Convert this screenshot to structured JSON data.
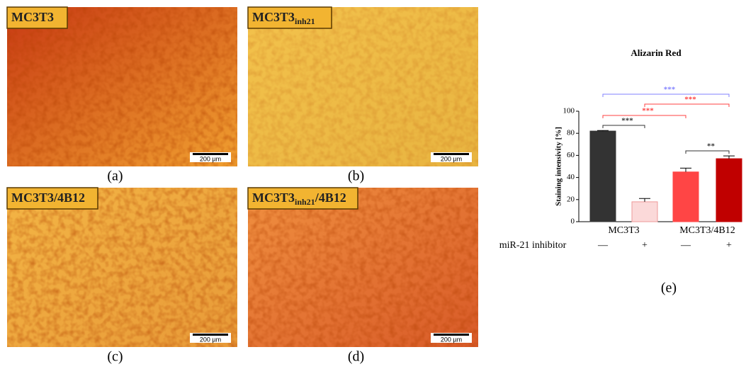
{
  "panels": [
    {
      "label": "MC3T3",
      "scale": "200 µm",
      "caption": "(a)"
    },
    {
      "label": "MC3T3",
      "label_sub": "inh21",
      "scale": "200 µm",
      "caption": "(b)"
    },
    {
      "label": "MC3T3/4B12",
      "scale": "200 µm",
      "caption": "(c)"
    },
    {
      "label": "MC3T3",
      "label_sub": "inh21",
      "label_suffix": "/4B12",
      "scale": "200 µm",
      "caption": "(d)"
    }
  ],
  "chart_data": {
    "type": "bar",
    "title": "Alizarin Red",
    "ylabel": "Staining intensivity [%]",
    "categories": [
      "—",
      "+",
      "—",
      "+"
    ],
    "row_label": "miR-21 inhibitor",
    "groups": [
      "MC3T3",
      "MC3T3/4B12"
    ],
    "values": [
      82,
      18,
      45,
      57
    ],
    "errors": [
      0.5,
      3,
      3.5,
      2.5
    ],
    "colors": [
      "#333333",
      "#fbd9d9",
      "#ff4545",
      "#c00000"
    ],
    "ylim": [
      0,
      100
    ],
    "yticks": [
      0,
      20,
      40,
      60,
      80,
      100
    ],
    "significance": [
      {
        "label": "***",
        "color": "#8080ff",
        "between": [
          0,
          3
        ]
      },
      {
        "label": "***",
        "color": "#ff4040",
        "between": [
          1,
          3
        ]
      },
      {
        "label": "***",
        "color": "#ff4040",
        "between": [
          0,
          2
        ]
      },
      {
        "label": "***",
        "color": "#333333",
        "between": [
          0,
          1
        ]
      },
      {
        "label": "**",
        "color": "#333333",
        "between": [
          2,
          3
        ]
      }
    ],
    "caption": "(e)"
  }
}
